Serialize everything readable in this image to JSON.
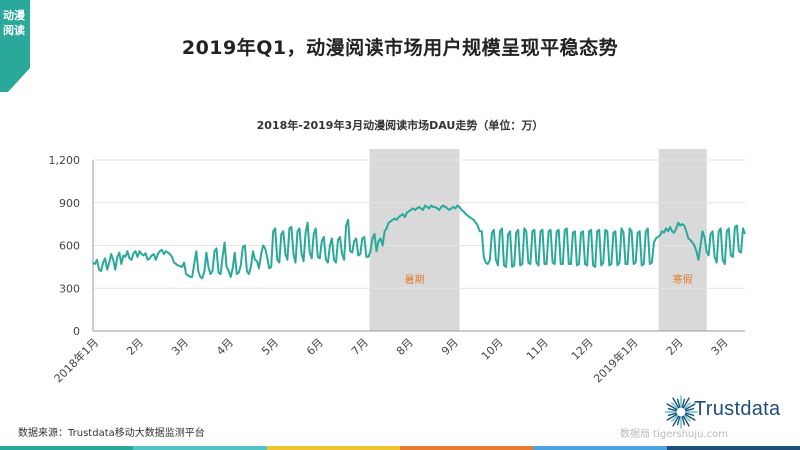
{
  "corner_tag": {
    "text": "动漫阅读",
    "color": "#2aa99b"
  },
  "page_title": "2019年Q1，动漫阅读市场用户规模呈现平稳态势",
  "chart_data": {
    "type": "line",
    "title": "2018年-2019年3月动漫阅读市场DAU走势（单位：万）",
    "ylim": [
      0,
      1200
    ],
    "yticks": [
      "0",
      "300",
      "600",
      "900",
      "1,200"
    ],
    "ytick_values": [
      0,
      300,
      600,
      900,
      1200
    ],
    "x_labels": [
      "2018年1月",
      "2月",
      "3月",
      "4月",
      "5月",
      "6月",
      "7月",
      "8月",
      "9月",
      "10月",
      "11月",
      "12月",
      "2019年1月",
      "2月",
      "3月"
    ],
    "series_color": "#2aa99b",
    "shaded_regions": [
      {
        "label": "暑期",
        "start_month": 6.15,
        "end_month": 8.15
      },
      {
        "label": "寒假",
        "start_month": 12.58,
        "end_month": 13.65
      }
    ],
    "series": [
      {
        "values": [
          480,
          470,
          500,
          430,
          420,
          480,
          510,
          430,
          480,
          540,
          500,
          430,
          520,
          550,
          470,
          530,
          520,
          560,
          510,
          500,
          545,
          560,
          520,
          560,
          540,
          530,
          545,
          500,
          510,
          530,
          540,
          500,
          540,
          560,
          570,
          540,
          560,
          550,
          540,
          520,
          480,
          470,
          460,
          455,
          450,
          480,
          400,
          390,
          380,
          380,
          470,
          560,
          420,
          380,
          370,
          420,
          550,
          450,
          400,
          420,
          560,
          580,
          410,
          400,
          520,
          620,
          450,
          420,
          380,
          440,
          550,
          400,
          410,
          460,
          590,
          600,
          420,
          400,
          450,
          560,
          500,
          490,
          440,
          540,
          600,
          580,
          520,
          440,
          450,
          700,
          720,
          500,
          480,
          680,
          700,
          540,
          500,
          720,
          730,
          540,
          480,
          700,
          720,
          540,
          490,
          690,
          760,
          550,
          510,
          680,
          720,
          520,
          510,
          630,
          660,
          500,
          480,
          600,
          650,
          500,
          480,
          640,
          660,
          540,
          500,
          740,
          780,
          560,
          550,
          630,
          650,
          530,
          540,
          650,
          660,
          520,
          520,
          560,
          650,
          680,
          560,
          630,
          650,
          600,
          700,
          720,
          760,
          770,
          780,
          790,
          780,
          800,
          810,
          820,
          800,
          830,
          840,
          850,
          860,
          850,
          860,
          870,
          860,
          850,
          880,
          870,
          860,
          880,
          870,
          870,
          860,
          850,
          870,
          880,
          870,
          860,
          850,
          860,
          870,
          860,
          880,
          870,
          850,
          840,
          820,
          810,
          800,
          790,
          780,
          760,
          740,
          700,
          700,
          520,
          480,
          470,
          500,
          690,
          710,
          500,
          460,
          700,
          720,
          460,
          450,
          680,
          700,
          450,
          460,
          690,
          710,
          460,
          470,
          720,
          700,
          480,
          470,
          700,
          710,
          480,
          460,
          700,
          710,
          470,
          470,
          700,
          710,
          480,
          470,
          700,
          710,
          470,
          470,
          710,
          720,
          470,
          470,
          690,
          700,
          460,
          470,
          690,
          700,
          470,
          460,
          700,
          710,
          460,
          450,
          700,
          710,
          460,
          480,
          710,
          700,
          460,
          470,
          690,
          700,
          460,
          480,
          720,
          690,
          470,
          470,
          720,
          700,
          470,
          480,
          690,
          700,
          460,
          470,
          700,
          720,
          470,
          480,
          620,
          650,
          660,
          670,
          700,
          690,
          720,
          700,
          730,
          700,
          690,
          720,
          760,
          740,
          750,
          740,
          700,
          650,
          640,
          620,
          600,
          560,
          500,
          600,
          700,
          660,
          560,
          530,
          680,
          700,
          520,
          480,
          700,
          720,
          500,
          470,
          700,
          720,
          530,
          520,
          730,
          740,
          560,
          550,
          720,
          680
        ]
      }
    ]
  },
  "footer": {
    "source": "数据来源：Trustdata移动大数据监测平台",
    "watermark": "数据局 tigershuju.com",
    "brand": "Trustdata",
    "brand_color": "#1e4e7a",
    "bar_colors": [
      "#2aa99b",
      "#52c3c7",
      "#f0c330",
      "#e77b2f",
      "#4aa3df",
      "#1e4e7a"
    ]
  }
}
